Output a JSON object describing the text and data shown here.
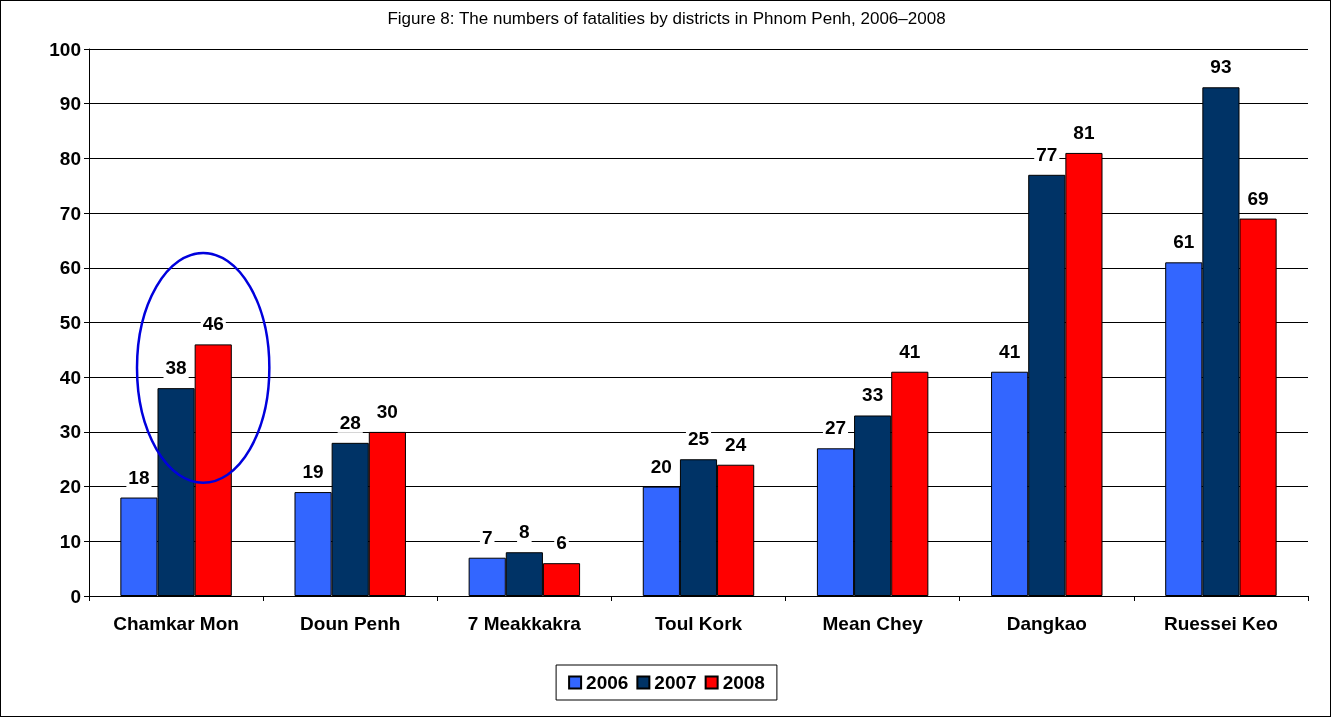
{
  "chart_data": {
    "type": "bar",
    "title": "Figure 8: The numbers of fatalities by districts in Phnom Penh, 2006–2008",
    "categories": [
      "Chamkar Mon",
      "Doun Penh",
      "7 Meakkakra",
      "Toul Kork",
      "Mean Chey",
      "Dangkao",
      "Ruessei Keo"
    ],
    "series": [
      {
        "name": "2006",
        "color": "#3366ff",
        "values": [
          18,
          19,
          7,
          20,
          27,
          41,
          61
        ]
      },
      {
        "name": "2007",
        "color": "#003366",
        "values": [
          38,
          28,
          8,
          25,
          33,
          77,
          93
        ]
      },
      {
        "name": "2008",
        "color": "#ff0000",
        "values": [
          46,
          30,
          6,
          24,
          41,
          81,
          69
        ]
      }
    ],
    "ylim": [
      0,
      100
    ],
    "yticks": [
      0,
      10,
      20,
      30,
      40,
      50,
      60,
      70,
      80,
      90,
      100
    ],
    "grid": "y",
    "legend": "bottom",
    "data_labels": true
  }
}
